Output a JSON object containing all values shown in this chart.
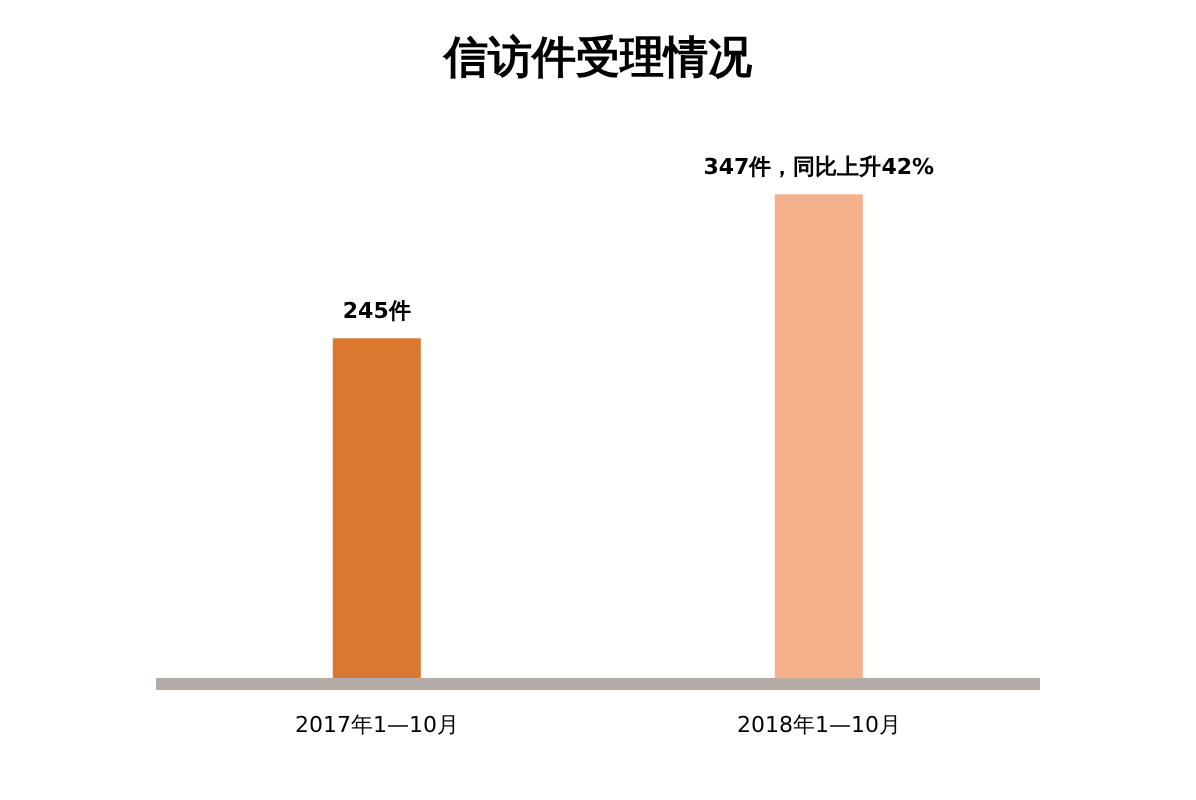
{
  "chart_data": {
    "type": "bar",
    "title": "信访件受理情况",
    "categories": [
      "2017年1—10月",
      "2018年1—10月"
    ],
    "values": [
      245,
      347
    ],
    "colors": [
      "#d9782e",
      "#f4b08a"
    ],
    "value_labels": [
      "245件",
      "347件，同比上升42%"
    ],
    "grid": false,
    "legend": false
  }
}
